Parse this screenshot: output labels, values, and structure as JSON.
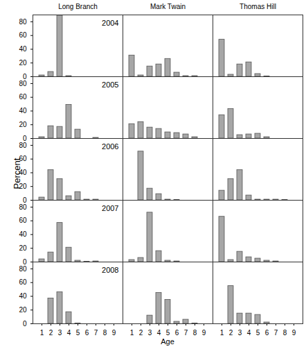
{
  "chart_data": {
    "type": "bar",
    "x_label": "Age",
    "y_label": "Percent",
    "columns": [
      "Long Branch",
      "Mark Twain",
      "Thomas Hill"
    ],
    "rows": [
      "2004",
      "2005",
      "2006",
      "2007",
      "2008"
    ],
    "categories": [
      1,
      2,
      3,
      4,
      5,
      6,
      7,
      8,
      9
    ],
    "color": "#a6a6a6",
    "ylim": [
      0,
      90
    ],
    "yticks": [
      0,
      20,
      40,
      60,
      80
    ],
    "panels": [
      {
        "column": "Long Branch",
        "row": "2004",
        "values": [
          2,
          7,
          89,
          1,
          0,
          0,
          0,
          0,
          0
        ]
      },
      {
        "column": "Mark Twain",
        "row": "2004",
        "values": [
          31,
          2,
          15,
          18,
          26,
          6,
          1,
          1,
          0
        ]
      },
      {
        "column": "Thomas Hill",
        "row": "2004",
        "values": [
          54,
          3,
          18,
          21,
          4,
          0.5,
          0,
          0,
          0
        ]
      },
      {
        "column": "Long Branch",
        "row": "2005",
        "values": [
          2,
          18,
          17,
          49,
          13,
          0,
          1,
          0,
          0
        ]
      },
      {
        "column": "Mark Twain",
        "row": "2005",
        "values": [
          21,
          24,
          16,
          14,
          9,
          8,
          6,
          2,
          0
        ]
      },
      {
        "column": "Thomas Hill",
        "row": "2005",
        "values": [
          34,
          43,
          5,
          6,
          7,
          2,
          0,
          0,
          0
        ]
      },
      {
        "column": "Long Branch",
        "row": "2006",
        "values": [
          4,
          44,
          31,
          6,
          12,
          1,
          1,
          0,
          0
        ]
      },
      {
        "column": "Mark Twain",
        "row": "2006",
        "values": [
          0,
          71,
          17,
          9,
          1,
          0.5,
          0,
          0,
          0
        ]
      },
      {
        "column": "Thomas Hill",
        "row": "2006",
        "values": [
          14,
          31,
          44,
          7,
          1,
          1,
          1,
          0.5,
          0
        ]
      },
      {
        "column": "Long Branch",
        "row": "2007",
        "values": [
          4,
          14,
          57,
          21,
          2,
          0.5,
          1,
          0,
          0
        ]
      },
      {
        "column": "Mark Twain",
        "row": "2007",
        "values": [
          3,
          6,
          72,
          16,
          2,
          1,
          0,
          0,
          0
        ]
      },
      {
        "column": "Thomas Hill",
        "row": "2007",
        "values": [
          66,
          3,
          15,
          7,
          5,
          2,
          1,
          0,
          0
        ]
      },
      {
        "column": "Long Branch",
        "row": "2008",
        "values": [
          0,
          37,
          46,
          17,
          0.5,
          0,
          0,
          0,
          0
        ]
      },
      {
        "column": "Mark Twain",
        "row": "2008",
        "values": [
          0,
          0,
          12,
          45,
          35,
          3,
          6,
          0.5,
          0
        ]
      },
      {
        "column": "Thomas Hill",
        "row": "2008",
        "values": [
          0,
          55,
          15,
          15,
          13,
          2,
          0,
          0,
          0
        ]
      }
    ]
  }
}
